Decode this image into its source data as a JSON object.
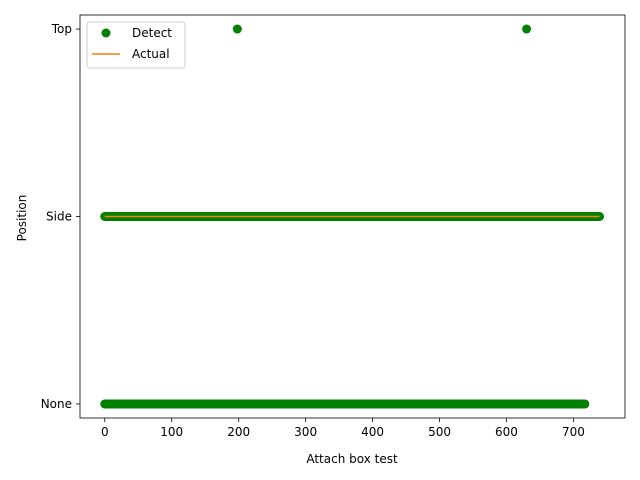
{
  "chart_data": {
    "type": "scatter",
    "xlabel": "Attach box test",
    "ylabel": "Position",
    "xlim": [
      -37,
      777
    ],
    "ylim": [
      -0.075,
      2.075
    ],
    "xticks": [
      0,
      100,
      200,
      300,
      400,
      500,
      600,
      700
    ],
    "yticks": [
      {
        "value": 0,
        "label": "None"
      },
      {
        "value": 1,
        "label": "Side"
      },
      {
        "value": 2,
        "label": "Top"
      }
    ],
    "grid": false,
    "legend": {
      "position": "upper-left",
      "entries": [
        {
          "label": "Detect",
          "marker": "circle",
          "color": "#008000"
        },
        {
          "label": "Actual",
          "marker": "line",
          "color": "#ff7f0e"
        }
      ]
    },
    "series": [
      {
        "name": "Detect",
        "kind": "scatter",
        "color": "#008000",
        "points": [
          {
            "x_start": 0,
            "x_end": 197,
            "step": 1,
            "y": 0
          },
          {
            "x_start": 199,
            "x_end": 629,
            "step": 1,
            "y": 0
          },
          {
            "x_start": 631,
            "x_end": 717,
            "step": 1,
            "y": 0
          },
          {
            "x_start": 0,
            "x_end": 739,
            "step": 1,
            "y": 1
          },
          {
            "x": 198,
            "y": 2
          },
          {
            "x": 630,
            "y": 2
          }
        ]
      },
      {
        "name": "Actual",
        "kind": "line",
        "color": "#ff7f0e",
        "x": [
          0,
          739
        ],
        "y": [
          1,
          1
        ]
      }
    ]
  }
}
